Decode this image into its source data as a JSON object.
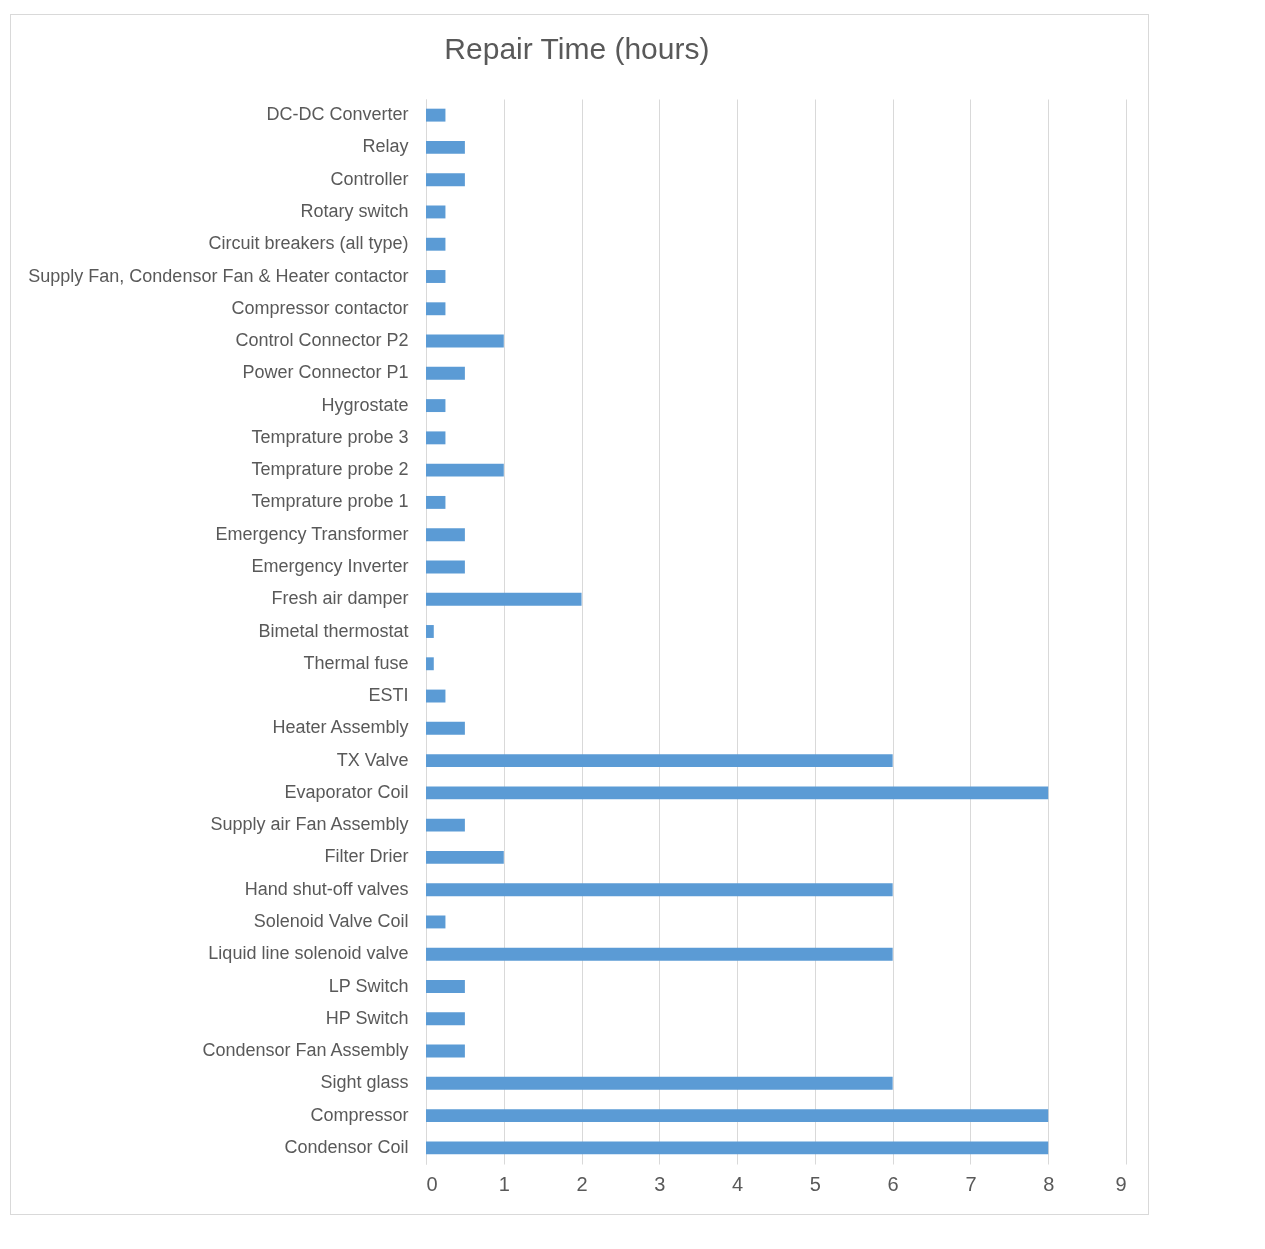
{
  "chart_data": {
    "type": "bar",
    "orientation": "horizontal",
    "title": "Repair Time  (hours)",
    "categories": [
      "DC-DC Converter",
      "Relay",
      "Controller ",
      "Rotary switch ",
      "Circuit breakers (all type)",
      "Supply Fan, Condensor Fan & Heater contactor",
      "Compressor contactor",
      "Control Connector P2",
      "Power Connector  P1",
      "Hygrostate",
      "Temprature probe 3",
      "Temprature probe 2",
      "Temprature probe 1",
      "Emergency Transformer",
      "Emergency Inverter",
      "Fresh air damper",
      "Bimetal thermostat",
      "Thermal fuse",
      "ESTI",
      "Heater Assembly",
      "TX Valve",
      "Evaporator Coil",
      "Supply air  Fan Assembly",
      "Filter Drier",
      "Hand shut-off valves",
      "Solenoid Valve Coil",
      "Liquid line solenoid valve",
      "LP Switch",
      "HP Switch",
      "Condensor Fan Assembly",
      "Sight glass",
      "Compressor",
      "Condensor Coil"
    ],
    "values": [
      0.25,
      0.5,
      0.5,
      0.25,
      0.25,
      0.25,
      0.25,
      1,
      0.5,
      0.25,
      0.25,
      1,
      0.25,
      0.5,
      0.5,
      2,
      0.1,
      0.1,
      0.25,
      0.5,
      6,
      8,
      0.5,
      1,
      6,
      0.25,
      6,
      0.5,
      0.5,
      0.5,
      6,
      8,
      8
    ],
    "color": "#5b9bd5",
    "xlim": [
      0,
      9
    ],
    "xticks": [
      0,
      1,
      2,
      3,
      4,
      5,
      6,
      7,
      8,
      9
    ],
    "grid": "x"
  }
}
